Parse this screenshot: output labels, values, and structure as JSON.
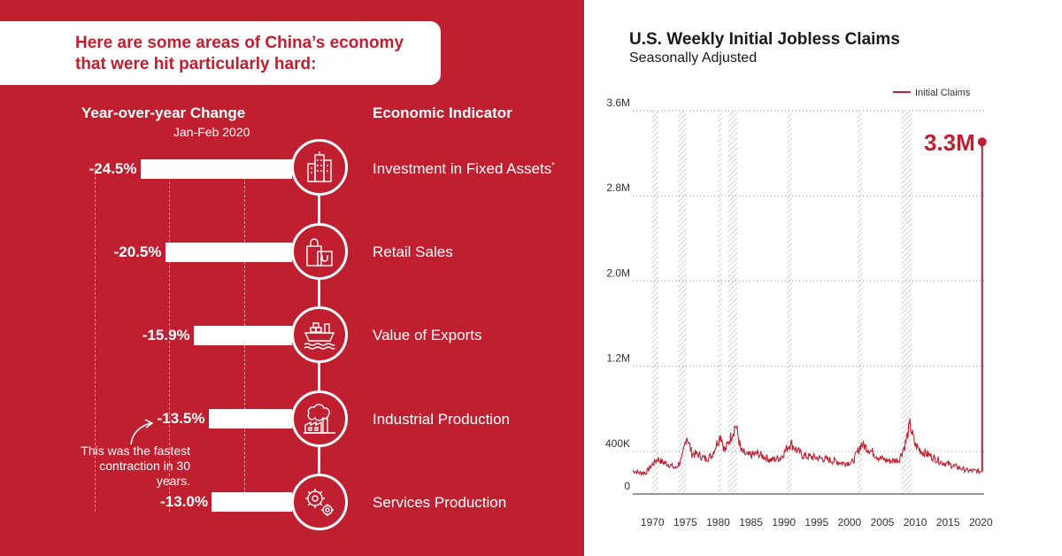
{
  "banner": {
    "text": "Here are some areas of China’s economy that were hit particularly hard:"
  },
  "left": {
    "col1_title": "Year-over-year Change",
    "col1_sub": "Jan-Feb 2020",
    "col2_title": "Economic Indicator",
    "note": "This was the fastest contraction in 30 years."
  },
  "indicators": [
    {
      "label": "Investment in Fixed Assets",
      "sup": "*",
      "value": -24.5,
      "value_label": "-24.5%",
      "icon": "skyscraper-icon"
    },
    {
      "label": "Retail Sales",
      "value": -20.5,
      "value_label": "-20.5%",
      "icon": "shopping-bag-icon"
    },
    {
      "label": "Value of Exports",
      "value": -15.9,
      "value_label": "-15.9%",
      "icon": "cargo-ship-icon"
    },
    {
      "label": "Industrial Production",
      "value": -13.5,
      "value_label": "-13.5%",
      "icon": "factory-icon"
    },
    {
      "label": "Services Production",
      "value": -13.0,
      "value_label": "-13.0%",
      "icon": "gears-icon"
    }
  ],
  "colors": {
    "accent": "#c01f2f",
    "panel": "#c01f2f",
    "white": "#ffffff",
    "recession": "#bdbdbd"
  },
  "chart_data": {
    "type": "line",
    "title": "U.S. Weekly Initial Jobless Claims",
    "subtitle": "Seasonally Adjusted",
    "legend": "Initial Claims",
    "legend_position": "top-right",
    "y_ticks": [
      {
        "v": 0,
        "label": "0"
      },
      {
        "v": 400000,
        "label": "400K"
      },
      {
        "v": 1200000,
        "label": "1.2M"
      },
      {
        "v": 2000000,
        "label": "2.0M"
      },
      {
        "v": 2800000,
        "label": "2.8M"
      },
      {
        "v": 3600000,
        "label": "3.6M"
      }
    ],
    "x_ticks": [
      1970,
      1975,
      1980,
      1985,
      1990,
      1995,
      2000,
      2005,
      2010,
      2015,
      2020
    ],
    "xlim": [
      1967,
      2020.5
    ],
    "ylim": [
      0,
      3600000
    ],
    "grid": "horizontal dotted",
    "annotation": "3.3M",
    "peak": {
      "x": 2020.2,
      "y": 3307000
    },
    "recessions": [
      [
        1969.9,
        1970.9
      ],
      [
        1973.9,
        1975.2
      ],
      [
        1980.0,
        1980.5
      ],
      [
        1981.5,
        1982.9
      ],
      [
        1990.5,
        1991.2
      ],
      [
        2001.2,
        2001.9
      ],
      [
        2007.9,
        2009.5
      ]
    ],
    "series": [
      {
        "name": "Initial Claims",
        "x": [
          1967,
          1968,
          1969,
          1970,
          1970.8,
          1971.5,
          1972.5,
          1973.5,
          1974.5,
          1975.2,
          1976,
          1977,
          1978,
          1979,
          1980.4,
          1981,
          1982.7,
          1983.5,
          1984.5,
          1986,
          1988,
          1989.5,
          1991,
          1992,
          1993,
          1995,
          1997,
          1999,
          2000.5,
          2001.8,
          2003,
          2004.5,
          2006,
          2007.5,
          2008.5,
          2009.2,
          2010,
          2011,
          2012,
          2014,
          2016,
          2018,
          2019.5,
          2020.1
        ],
        "y": [
          220000,
          200000,
          200000,
          280000,
          330000,
          300000,
          280000,
          240000,
          330000,
          550000,
          380000,
          370000,
          330000,
          360000,
          560000,
          400000,
          650000,
          400000,
          360000,
          380000,
          320000,
          340000,
          480000,
          410000,
          360000,
          340000,
          320000,
          290000,
          300000,
          470000,
          420000,
          340000,
          310000,
          320000,
          470000,
          650000,
          460000,
          400000,
          370000,
          300000,
          260000,
          220000,
          215000,
          210000
        ]
      }
    ]
  }
}
